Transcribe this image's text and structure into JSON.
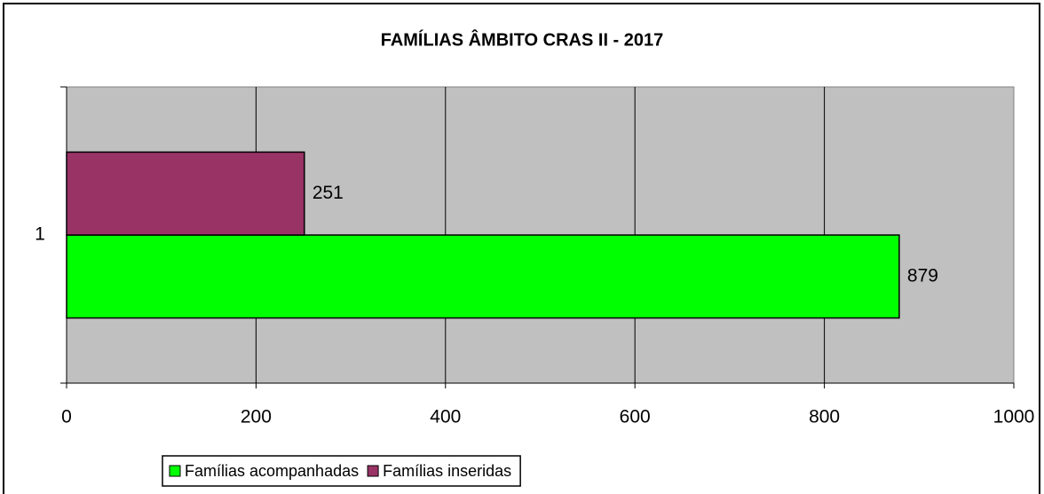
{
  "chart_data": {
    "type": "bar",
    "orientation": "horizontal",
    "title": "FAMÍLIAS ÂMBITO CRAS II - 2017",
    "categories": [
      "1"
    ],
    "series": [
      {
        "name": "Famílias acompanhadas",
        "color": "#00ff00",
        "values": [
          879
        ]
      },
      {
        "name": "Famílias inseridas",
        "color": "#993366",
        "values": [
          251
        ]
      }
    ],
    "xlim": [
      0,
      1000
    ],
    "xticks": [
      0,
      200,
      400,
      600,
      800,
      1000
    ],
    "grid": true,
    "legend": "bottom"
  }
}
